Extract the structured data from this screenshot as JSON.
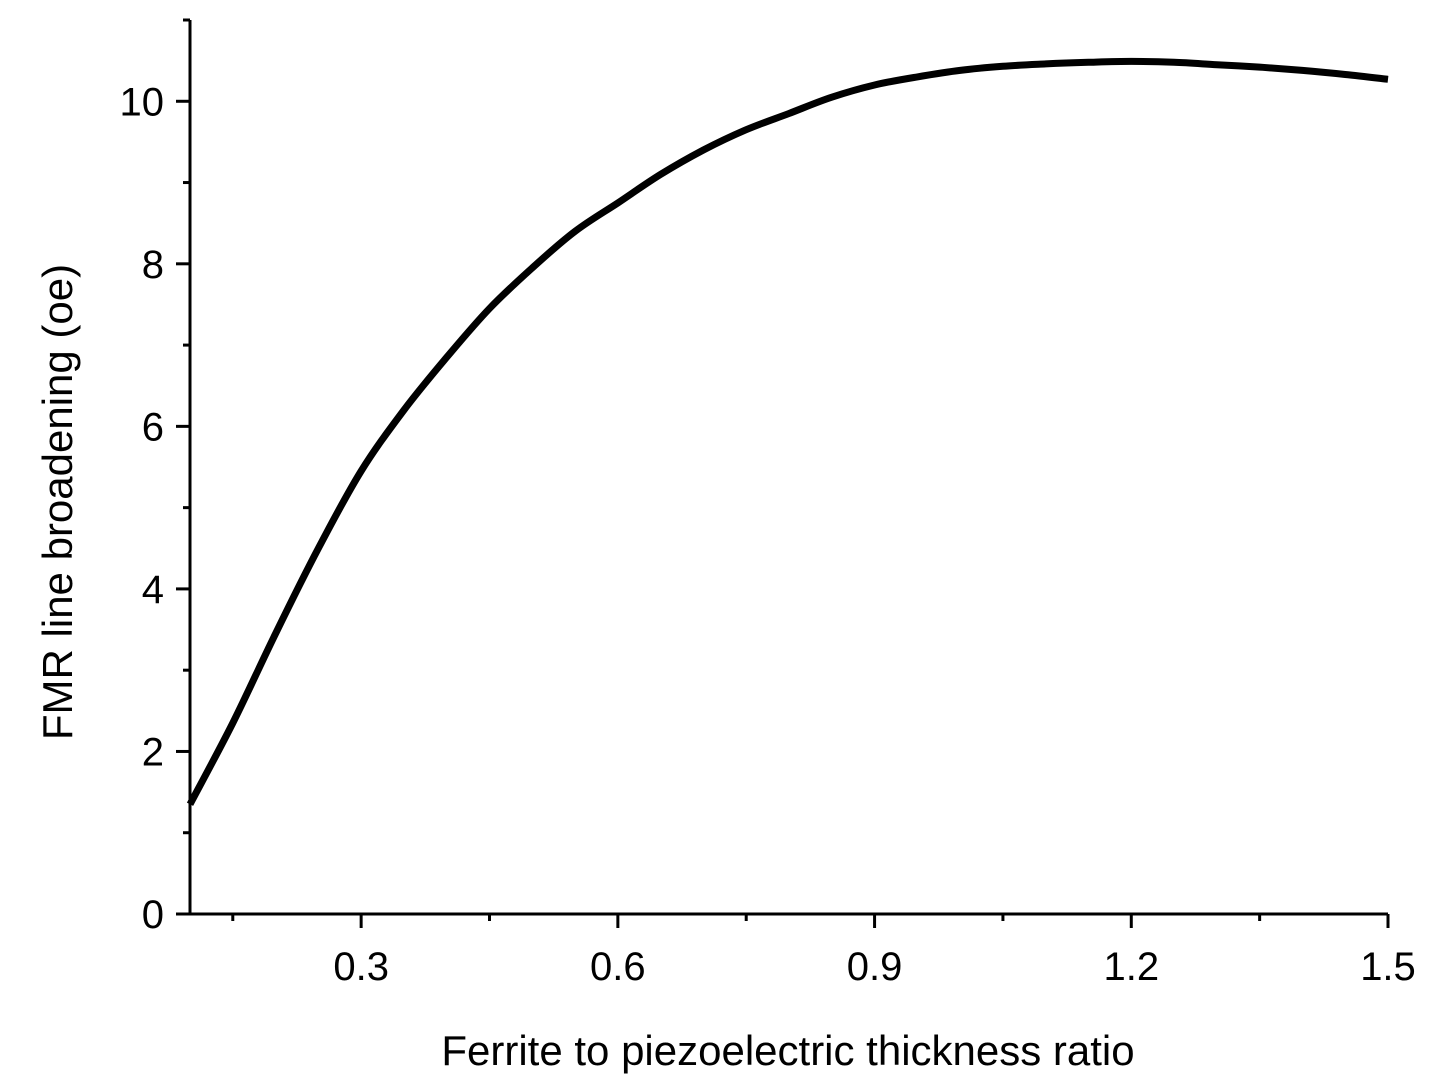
{
  "chart_data": {
    "type": "line",
    "title": "",
    "xlabel": "Ferrite to piezoelectric thickness ratio",
    "ylabel": "FMR line broadening (oe)",
    "xlim": [
      0.1,
      1.5
    ],
    "ylim": [
      0,
      11
    ],
    "x_ticks": [
      0.3,
      0.6,
      0.9,
      1.2,
      1.5
    ],
    "x_tick_labels": [
      "0.3",
      "0.6",
      "0.9",
      "1.2",
      "1.5"
    ],
    "y_ticks": [
      0,
      2,
      4,
      6,
      8,
      10
    ],
    "y_tick_labels": [
      "0",
      "2",
      "4",
      "6",
      "8",
      "10"
    ],
    "grid": false,
    "legend": "none",
    "line_color": "#000000",
    "series": [
      {
        "x": [
          0.1,
          0.15,
          0.2,
          0.25,
          0.3,
          0.35,
          0.4,
          0.45,
          0.5,
          0.55,
          0.6,
          0.65,
          0.7,
          0.75,
          0.8,
          0.85,
          0.9,
          0.95,
          1.0,
          1.05,
          1.1,
          1.15,
          1.2,
          1.25,
          1.3,
          1.35,
          1.4,
          1.45,
          1.5
        ],
        "y": [
          1.35,
          2.35,
          3.45,
          4.5,
          5.45,
          6.2,
          6.85,
          7.45,
          7.95,
          8.4,
          8.75,
          9.1,
          9.4,
          9.65,
          9.85,
          10.05,
          10.2,
          10.3,
          10.38,
          10.43,
          10.46,
          10.48,
          10.49,
          10.48,
          10.45,
          10.42,
          10.38,
          10.33,
          10.27
        ]
      }
    ]
  }
}
